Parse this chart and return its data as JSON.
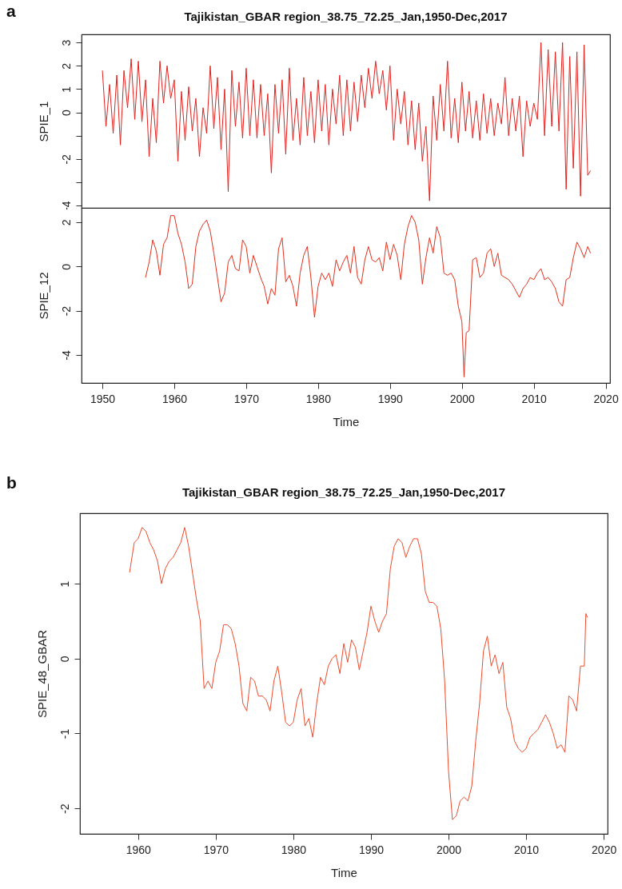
{
  "chart_data": [
    {
      "type": "line",
      "title": "Tajikistan_GBAR region_38.75_72.25_Jan,1950-Dec,2017",
      "ylabel": "SPIE_1",
      "annotations": [
        "a"
      ],
      "tick_labels": "y",
      "grid": false,
      "xlim": [
        1947.1,
        2020.6
      ],
      "ylim": [
        -4.1,
        3.35
      ],
      "yticks": [
        -4,
        {
          "value": -3,
          "label": null
        },
        -2,
        {
          "value": -1,
          "label": null
        },
        0,
        1,
        2,
        3
      ],
      "x": [
        1950,
        1950.5,
        1951,
        1951.5,
        1952,
        1952.5,
        1953,
        1953.5,
        1954,
        1954.5,
        1955,
        1955.5,
        1956,
        1956.5,
        1957,
        1957.5,
        1958,
        1958.5,
        1959,
        1959.5,
        1960,
        1960.5,
        1961,
        1961.5,
        1962,
        1962.5,
        1963,
        1963.5,
        1964,
        1964.5,
        1965,
        1965.5,
        1966,
        1966.5,
        1967,
        1967.5,
        1968,
        1968.5,
        1969,
        1969.5,
        1970,
        1970.5,
        1971,
        1971.5,
        1972,
        1972.5,
        1973,
        1973.5,
        1974,
        1974.5,
        1975,
        1975.5,
        1976,
        1976.5,
        1977,
        1977.5,
        1978,
        1978.5,
        1979,
        1979.5,
        1980,
        1980.5,
        1981,
        1981.5,
        1982,
        1982.5,
        1983,
        1983.5,
        1984,
        1984.5,
        1985,
        1985.5,
        1986,
        1986.5,
        1987,
        1987.5,
        1988,
        1988.5,
        1989,
        1989.5,
        1990,
        1990.5,
        1991,
        1991.5,
        1992,
        1992.5,
        1993,
        1993.5,
        1994,
        1994.5,
        1995,
        1995.5,
        1996,
        1996.5,
        1997,
        1997.5,
        1998,
        1998.5,
        1999,
        1999.5,
        2000,
        2000.5,
        2001,
        2001.5,
        2002,
        2002.5,
        2003,
        2003.5,
        2004,
        2004.5,
        2005,
        2005.5,
        2006,
        2006.5,
        2007,
        2007.5,
        2008,
        2008.5,
        2009,
        2009.5,
        2010,
        2010.5,
        2011,
        2011.5,
        2012,
        2012.5,
        2013,
        2013.5,
        2014,
        2014.5,
        2015,
        2015.5,
        2016,
        2016.5,
        2017,
        2017.5,
        2017.9
      ],
      "series": [
        {
          "color": "#e3201c",
          "values": [
            1.8,
            -0.6,
            1.2,
            -0.9,
            1.6,
            -1.4,
            1.8,
            0.2,
            2.3,
            -0.3,
            2.2,
            -0.4,
            1.4,
            -1.9,
            0.6,
            -1.3,
            2.2,
            0.4,
            2.0,
            0.6,
            1.4,
            -2.1,
            0.9,
            -1.2,
            1.1,
            -0.8,
            0.6,
            -1.9,
            0.2,
            -0.9,
            2.0,
            -0.7,
            1.5,
            -1.6,
            1.0,
            -3.4,
            1.8,
            -0.6,
            1.3,
            -1.1,
            1.9,
            -1.0,
            1.4,
            -1.1,
            1.2,
            -1.0,
            0.8,
            -2.6,
            1.2,
            -0.9,
            1.4,
            -1.8,
            1.9,
            -1.2,
            0.6,
            -1.4,
            1.5,
            -1.0,
            0.9,
            -1.3,
            1.4,
            -0.8,
            1.2,
            -1.4,
            1.0,
            -0.5,
            1.6,
            -1.0,
            1.4,
            -0.8,
            1.3,
            -0.4,
            1.6,
            0.2,
            1.9,
            0.6,
            2.2,
            0.8,
            1.8,
            0.1,
            2.0,
            -1.2,
            1.0,
            -0.5,
            0.9,
            -1.4,
            0.5,
            -1.6,
            0.4,
            -2.1,
            -0.6,
            -3.8,
            0.7,
            -1.2,
            1.2,
            -0.8,
            2.2,
            -1.1,
            0.6,
            -1.3,
            1.3,
            -0.8,
            0.9,
            -1.1,
            0.5,
            -1.2,
            0.8,
            -0.9,
            0.6,
            -1.0,
            0.4,
            -0.5,
            1.5,
            -1.0,
            0.6,
            -0.8,
            0.7,
            -1.9,
            0.5,
            -0.6,
            0.4,
            -0.3,
            3.0,
            -1.0,
            2.7,
            -0.6,
            2.6,
            -0.8,
            3.0,
            -3.3,
            2.4,
            -2.4,
            2.6,
            -3.6,
            2.9,
            -2.7,
            -2.5
          ]
        }
      ]
    },
    {
      "type": "line",
      "xlabel": "Time",
      "ylabel": "SPIE_12",
      "grid": false,
      "xlim": [
        1947.1,
        2020.6
      ],
      "ylim": [
        -5.27,
        2.65
      ],
      "xticks": [
        1950,
        1960,
        1970,
        1980,
        1990,
        2000,
        2010,
        2020
      ],
      "yticks": [
        -4,
        -2,
        0,
        2
      ],
      "x": [
        1956,
        1956.5,
        1957,
        1957.5,
        1958,
        1958.5,
        1959,
        1959.5,
        1960,
        1960.5,
        1961,
        1961.5,
        1962,
        1962.5,
        1963,
        1963.5,
        1964,
        1964.5,
        1965,
        1965.5,
        1966,
        1966.5,
        1967,
        1967.5,
        1968,
        1968.5,
        1969,
        1969.5,
        1970,
        1970.5,
        1971,
        1971.5,
        1972,
        1972.5,
        1973,
        1973.5,
        1974,
        1974.5,
        1975,
        1975.5,
        1976,
        1976.5,
        1977,
        1977.5,
        1978,
        1978.5,
        1979,
        1979.5,
        1980,
        1980.5,
        1981,
        1981.5,
        1982,
        1982.5,
        1983,
        1983.5,
        1984,
        1984.5,
        1985,
        1985.5,
        1986,
        1986.5,
        1987,
        1987.5,
        1988,
        1988.5,
        1989,
        1989.5,
        1990,
        1990.5,
        1991,
        1991.5,
        1992,
        1992.5,
        1993,
        1993.5,
        1994,
        1994.5,
        1995,
        1995.5,
        1996,
        1996.5,
        1997,
        1997.5,
        1998,
        1998.5,
        1999,
        1999.5,
        2000,
        2000.3,
        2000.6,
        2001,
        2001.5,
        2002,
        2002.5,
        2003,
        2003.5,
        2004,
        2004.5,
        2005,
        2005.5,
        2006,
        2006.5,
        2007,
        2007.5,
        2008,
        2008.5,
        2009,
        2009.5,
        2010,
        2010.5,
        2011,
        2011.5,
        2012,
        2012.5,
        2013,
        2013.5,
        2014,
        2014.5,
        2015,
        2015.5,
        2016,
        2016.5,
        2017,
        2017.5,
        2017.9
      ],
      "series": [
        {
          "color": "#e3301c",
          "values": [
            -0.5,
            0.2,
            1.2,
            0.7,
            -0.4,
            1.0,
            1.3,
            2.3,
            2.3,
            1.5,
            1.0,
            0.2,
            -1.0,
            -0.8,
            0.9,
            1.6,
            1.9,
            2.1,
            1.6,
            0.6,
            -0.5,
            -1.6,
            -1.2,
            0.2,
            0.5,
            -0.1,
            -0.2,
            1.2,
            0.9,
            -0.3,
            0.5,
            0.0,
            -0.5,
            -0.9,
            -1.7,
            -1.0,
            -1.3,
            0.8,
            1.3,
            -0.7,
            -0.4,
            -0.9,
            -1.8,
            -0.3,
            0.5,
            0.9,
            -0.5,
            -2.3,
            -0.9,
            -0.3,
            -0.6,
            -0.3,
            -0.9,
            0.3,
            -0.2,
            0.2,
            0.5,
            -0.3,
            0.9,
            -0.5,
            -0.8,
            0.3,
            0.9,
            0.3,
            0.2,
            0.4,
            -0.2,
            1.1,
            0.3,
            1.0,
            0.5,
            -0.6,
            1.0,
            1.8,
            2.3,
            2.0,
            1.2,
            -0.8,
            0.4,
            1.3,
            0.6,
            1.8,
            1.3,
            -0.3,
            -0.4,
            -0.3,
            -0.6,
            -1.8,
            -2.5,
            -5.0,
            -3.0,
            -2.9,
            0.3,
            0.4,
            -0.5,
            -0.3,
            0.6,
            0.8,
            0.0,
            0.6,
            -0.4,
            -0.5,
            -0.6,
            -0.8,
            -1.1,
            -1.4,
            -1.0,
            -0.8,
            -0.5,
            -0.6,
            -0.3,
            -0.1,
            -0.6,
            -0.5,
            -0.7,
            -1.0,
            -1.6,
            -1.8,
            -0.6,
            -0.5,
            0.4,
            1.1,
            0.8,
            0.4,
            0.9,
            0.6
          ]
        }
      ]
    },
    {
      "type": "line",
      "title": "Tajikistan_GBAR region_38.75_72.25_Jan,1950-Dec,2017",
      "xlabel": "Time",
      "ylabel": "SPIE_48_GBAR",
      "annotations": [
        "b"
      ],
      "grid": false,
      "xlim": [
        1952.5,
        2020.5
      ],
      "ylim": [
        -2.34,
        1.94
      ],
      "xticks": [
        1960,
        1970,
        1980,
        1990,
        2000,
        2010,
        2020
      ],
      "yticks": [
        -2,
        -1,
        0,
        1
      ],
      "x": [
        1958.9,
        1959.5,
        1960,
        1960.5,
        1961,
        1961.5,
        1962,
        1962.5,
        1963,
        1963.5,
        1964,
        1964.5,
        1965,
        1965.5,
        1966,
        1966.5,
        1967,
        1967.5,
        1968,
        1968.5,
        1969,
        1969.5,
        1970,
        1970.5,
        1971,
        1971.5,
        1972,
        1972.5,
        1973,
        1973.5,
        1974,
        1974.5,
        1975,
        1975.5,
        1976,
        1976.5,
        1977,
        1977.5,
        1978,
        1978.5,
        1979,
        1979.5,
        1980,
        1980.5,
        1981,
        1981.5,
        1982,
        1982.5,
        1983,
        1983.5,
        1984,
        1984.5,
        1985,
        1985.5,
        1986,
        1986.5,
        1987,
        1987.5,
        1988,
        1988.5,
        1989,
        1989.5,
        1990,
        1990.5,
        1991,
        1991.5,
        1992,
        1992.5,
        1993,
        1993.5,
        1994,
        1994.5,
        1995,
        1995.5,
        1996,
        1996.5,
        1997,
        1997.5,
        1998,
        1998.5,
        1999,
        1999.5,
        2000,
        2000.5,
        2001,
        2001.5,
        2002,
        2002.5,
        2003,
        2003.5,
        2004,
        2004.5,
        2005,
        2005.5,
        2006,
        2006.5,
        2007,
        2007.5,
        2008,
        2008.5,
        2009,
        2009.5,
        2010,
        2010.5,
        2011,
        2011.5,
        2012,
        2012.5,
        2013,
        2013.5,
        2014,
        2014.5,
        2015,
        2015.5,
        2016,
        2016.5,
        2017,
        2017.5,
        2017.7,
        2017.9
      ],
      "series": [
        {
          "color": "#ef4b2b",
          "values": [
            1.15,
            1.55,
            1.6,
            1.75,
            1.7,
            1.55,
            1.45,
            1.3,
            1.0,
            1.2,
            1.3,
            1.35,
            1.45,
            1.55,
            1.75,
            1.5,
            1.15,
            0.8,
            0.5,
            -0.4,
            -0.3,
            -0.4,
            -0.05,
            0.1,
            0.45,
            0.45,
            0.4,
            0.2,
            -0.1,
            -0.6,
            -0.7,
            -0.25,
            -0.3,
            -0.5,
            -0.5,
            -0.55,
            -0.7,
            -0.3,
            -0.1,
            -0.45,
            -0.85,
            -0.9,
            -0.85,
            -0.55,
            -0.4,
            -0.9,
            -0.8,
            -1.05,
            -0.6,
            -0.25,
            -0.35,
            -0.1,
            0.0,
            0.05,
            -0.2,
            0.2,
            -0.05,
            0.25,
            0.15,
            -0.15,
            0.1,
            0.35,
            0.7,
            0.5,
            0.35,
            0.5,
            0.6,
            1.2,
            1.5,
            1.6,
            1.55,
            1.35,
            1.5,
            1.6,
            1.6,
            1.4,
            0.9,
            0.75,
            0.75,
            0.7,
            0.4,
            -0.3,
            -1.5,
            -2.15,
            -2.1,
            -1.9,
            -1.85,
            -1.9,
            -1.7,
            -1.1,
            -0.6,
            0.1,
            0.3,
            -0.1,
            0.05,
            -0.2,
            -0.05,
            -0.65,
            -0.8,
            -1.1,
            -1.2,
            -1.25,
            -1.2,
            -1.05,
            -1.0,
            -0.95,
            -0.85,
            -0.75,
            -0.85,
            -1.0,
            -1.2,
            -1.15,
            -1.25,
            -0.5,
            -0.55,
            -0.7,
            -0.1,
            -0.1,
            0.6,
            0.55
          ]
        }
      ]
    }
  ]
}
